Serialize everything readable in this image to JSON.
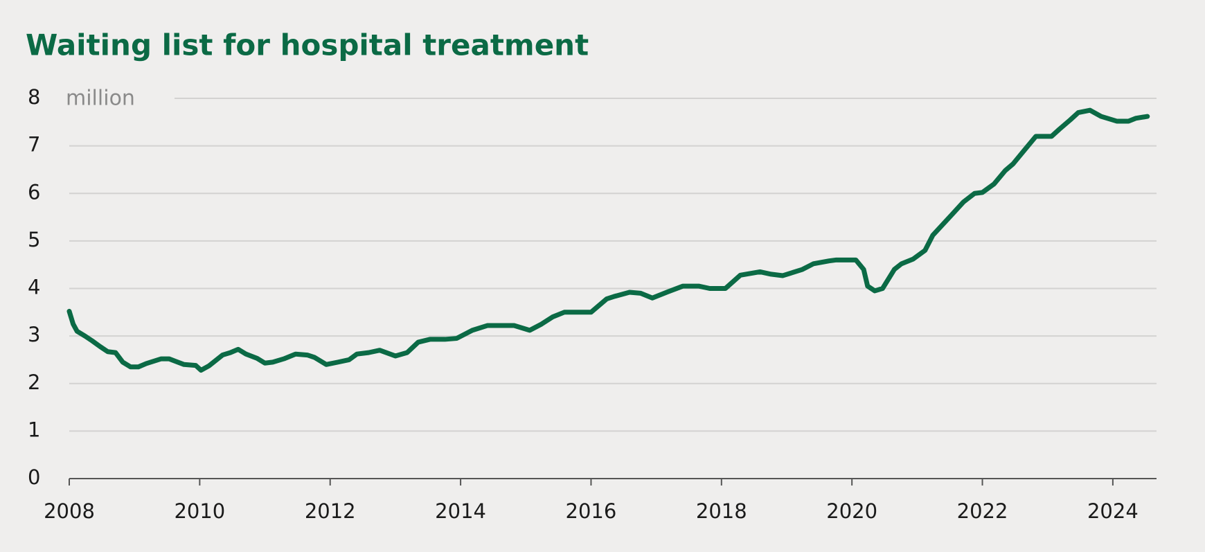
{
  "chart_data": {
    "type": "line",
    "title": "Waiting list for hospital treatment",
    "y_unit_label": "million",
    "x": [
      2008.0,
      2008.06,
      2008.12,
      2008.24,
      2008.35,
      2008.47,
      2008.59,
      2008.71,
      2008.82,
      2008.94,
      2009.06,
      2009.18,
      2009.41,
      2009.53,
      2009.76,
      2009.94,
      2010.02,
      2010.14,
      2010.35,
      2010.47,
      2010.59,
      2010.71,
      2010.88,
      2011.0,
      2011.12,
      2011.29,
      2011.47,
      2011.65,
      2011.76,
      2011.94,
      2012.12,
      2012.29,
      2012.41,
      2012.59,
      2012.76,
      2013.0,
      2013.18,
      2013.35,
      2013.53,
      2013.76,
      2013.94,
      2014.18,
      2014.41,
      2014.82,
      2015.06,
      2015.24,
      2015.41,
      2015.59,
      2015.76,
      2016.0,
      2016.24,
      2016.35,
      2016.59,
      2016.76,
      2016.94,
      2017.18,
      2017.41,
      2017.65,
      2017.82,
      2018.06,
      2018.29,
      2018.59,
      2018.76,
      2018.94,
      2019.24,
      2019.41,
      2019.65,
      2019.76,
      2020.06,
      2020.18,
      2020.24,
      2020.35,
      2020.47,
      2020.65,
      2020.76,
      2020.94,
      2021.12,
      2021.24,
      2021.53,
      2021.71,
      2021.88,
      2022.0,
      2022.18,
      2022.35,
      2022.47,
      2022.65,
      2022.82,
      2023.06,
      2023.18,
      2023.35,
      2023.47,
      2023.65,
      2023.82,
      2024.06,
      2024.24,
      2024.35,
      2024.53
    ],
    "series": [
      {
        "name": "Waiting list",
        "color": "#0b6a45",
        "values": [
          3.52,
          3.25,
          3.1,
          3.0,
          2.9,
          2.78,
          2.67,
          2.65,
          2.45,
          2.35,
          2.35,
          2.42,
          2.52,
          2.52,
          2.4,
          2.38,
          2.28,
          2.37,
          2.6,
          2.65,
          2.72,
          2.62,
          2.53,
          2.43,
          2.45,
          2.52,
          2.62,
          2.6,
          2.55,
          2.4,
          2.45,
          2.5,
          2.62,
          2.65,
          2.7,
          2.58,
          2.65,
          2.87,
          2.93,
          2.93,
          2.95,
          3.12,
          3.22,
          3.22,
          3.12,
          3.25,
          3.4,
          3.5,
          3.5,
          3.5,
          3.78,
          3.83,
          3.92,
          3.9,
          3.8,
          3.93,
          4.05,
          4.05,
          4.0,
          4.0,
          4.28,
          4.35,
          4.3,
          4.27,
          4.4,
          4.52,
          4.58,
          4.6,
          4.6,
          4.4,
          4.05,
          3.95,
          4.0,
          4.4,
          4.52,
          4.62,
          4.8,
          5.12,
          5.55,
          5.82,
          6.0,
          6.02,
          6.2,
          6.48,
          6.62,
          6.92,
          7.2,
          7.2,
          7.35,
          7.55,
          7.7,
          7.75,
          7.62,
          7.52,
          7.52,
          7.58,
          7.62
        ]
      }
    ],
    "xlim": [
      2008,
      2024.67
    ],
    "xticks": [
      2008,
      2010,
      2012,
      2014,
      2016,
      2018,
      2020,
      2022,
      2024
    ],
    "ylim": [
      0,
      8
    ],
    "yticks": [
      0,
      1,
      2,
      3,
      4,
      5,
      6,
      7,
      8
    ],
    "grid": true
  }
}
